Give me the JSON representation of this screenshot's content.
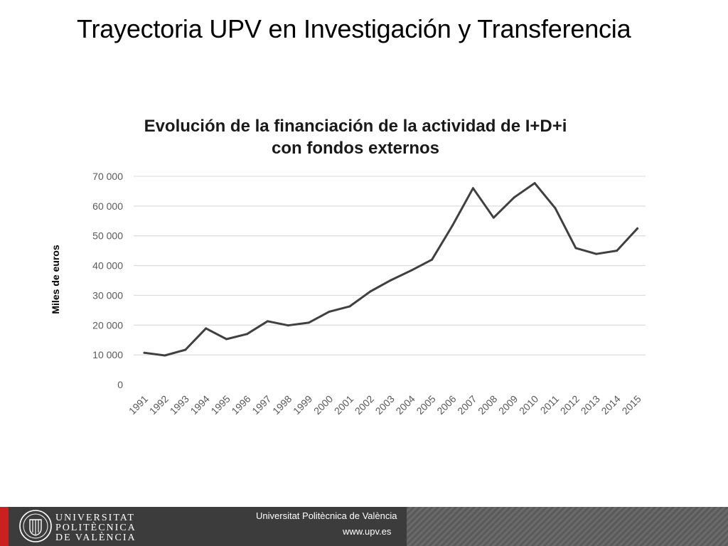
{
  "slide": {
    "title": "Trayectoria UPV en Investigación y Transferencia"
  },
  "footer": {
    "institution": "Universitat Politècnica de València",
    "url": "www.upv.es",
    "logo_lines": [
      "UNIVERSITAT",
      "POLITÈCNICA",
      "DE VALÈNCIA"
    ],
    "accent_color": "#cc1f1f",
    "background_color": "#3c3c3c"
  },
  "chart_data": {
    "type": "line",
    "title_lines": [
      "Evolución de la financiación de la actividad de I+D+i",
      "con fondos externos"
    ],
    "xlabel": "",
    "ylabel": "Miles de euros",
    "ylim": [
      0,
      70000
    ],
    "yticks": [
      0,
      10000,
      20000,
      30000,
      40000,
      50000,
      60000,
      70000
    ],
    "ytick_labels": [
      "0",
      "10 000",
      "20 000",
      "30 000",
      "40 000",
      "50 000",
      "60 000",
      "70 000"
    ],
    "grid": true,
    "legend": "none",
    "line_color": "#404040",
    "categories": [
      "1991",
      "1992",
      "1993",
      "1994",
      "1995",
      "1996",
      "1997",
      "1998",
      "1999",
      "2000",
      "2001",
      "2002",
      "2003",
      "2004",
      "2005",
      "2006",
      "2007",
      "2008",
      "2009",
      "2010",
      "2011",
      "2012",
      "2013",
      "2014",
      "2015"
    ],
    "series": [
      {
        "values": [
          10700,
          9800,
          11700,
          18900,
          15300,
          17000,
          21300,
          19900,
          20800,
          24500,
          26300,
          31300,
          35100,
          38400,
          42000,
          53500,
          66000,
          56100,
          62900,
          67700,
          59300,
          45900,
          43900,
          45000,
          52500
        ]
      }
    ]
  }
}
